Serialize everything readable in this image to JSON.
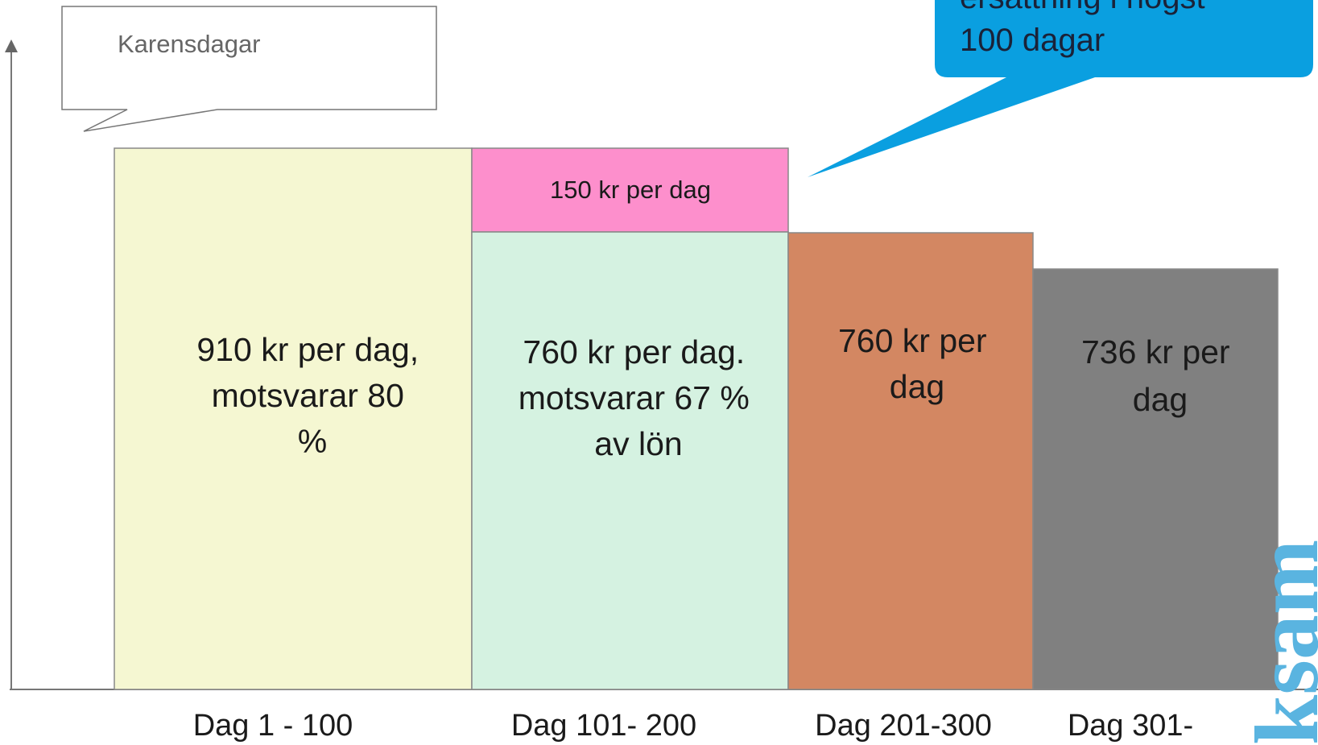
{
  "callouts": {
    "karens": "Karensdagar",
    "top": [
      "ersättning i högst",
      "100 dagar"
    ]
  },
  "supplement": "150 kr per dag",
  "blocks": [
    {
      "lines": [
        "910 kr per dag,",
        "motsvarar 80",
        "%"
      ]
    },
    {
      "lines": [
        "760 kr per dag.",
        "motsvarar 67 %",
        "av lön"
      ]
    },
    {
      "lines": [
        "760 kr per",
        "dag"
      ]
    },
    {
      "lines": [
        "736 kr per",
        "dag"
      ]
    }
  ],
  "x_labels": [
    "Dag 1 - 100",
    "Dag 101- 200",
    "Dag 201-300",
    "Dag 301-"
  ],
  "watermark": "ksam"
}
